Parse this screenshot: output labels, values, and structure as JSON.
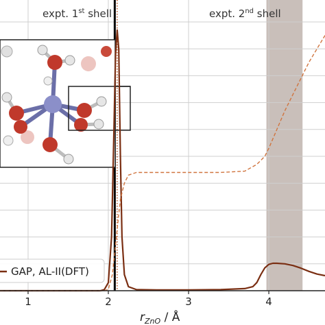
{
  "chart_data": {
    "type": "line",
    "xlabel": {
      "main": "r",
      "sub": "ZnO",
      "rest": " / Å"
    },
    "xlim": [
      0.65,
      4.7
    ],
    "ylim": [
      0,
      1
    ],
    "xticks": [
      1,
      2,
      3,
      4
    ],
    "xtick_labels": [
      "1",
      "2",
      "3",
      "4"
    ],
    "grid": true,
    "legend": {
      "position": "lower-left",
      "label": "GAP, AL-II(DFT)"
    },
    "annotations": [
      {
        "base": "expt. 1",
        "sup": "st",
        "rest": " shell"
      },
      {
        "base": "expt. 2",
        "sup": "nd",
        "rest": " shell"
      }
    ],
    "reference_lines": [
      {
        "x": 2.08,
        "style": "solid",
        "color": "#000000"
      },
      {
        "x": 2.11,
        "style": "dotted",
        "color": "#b5552a"
      }
    ],
    "shaded_band": {
      "x": [
        3.97,
        4.42
      ],
      "color": "#c9bfba"
    },
    "inset": {
      "description": "octahedral Zn–water cluster rendering"
    },
    "series": [
      {
        "name": "GAP, AL-II(DFT)",
        "role": "g(r)",
        "style": "solid",
        "color": "#7a2e12",
        "x": [
          0.65,
          1.9,
          1.95,
          2.0,
          2.04,
          2.07,
          2.09,
          2.11,
          2.13,
          2.15,
          2.17,
          2.2,
          2.25,
          2.35,
          2.6,
          3.0,
          3.4,
          3.7,
          3.8,
          3.85,
          3.9,
          3.95,
          4.0,
          4.05,
          4.1,
          4.2,
          4.3,
          4.4,
          4.5,
          4.6,
          4.7
        ],
        "y": [
          0.0,
          0.0,
          0.004,
          0.03,
          0.2,
          0.6,
          0.88,
          0.97,
          0.9,
          0.5,
          0.2,
          0.06,
          0.015,
          0.004,
          0.003,
          0.003,
          0.004,
          0.008,
          0.015,
          0.03,
          0.06,
          0.085,
          0.098,
          0.102,
          0.102,
          0.1,
          0.094,
          0.084,
          0.072,
          0.062,
          0.056
        ]
      },
      {
        "name": "",
        "role": "running coordination",
        "style": "dashed",
        "color": "#d0743e",
        "x": [
          0.65,
          1.95,
          2.0,
          2.05,
          2.1,
          2.15,
          2.2,
          2.25,
          2.35,
          2.6,
          3.0,
          3.4,
          3.7,
          3.85,
          3.95,
          4.0,
          4.1,
          4.2,
          4.3,
          4.4,
          4.5,
          4.6,
          4.7
        ],
        "y": [
          0.0,
          0.0,
          0.005,
          0.06,
          0.2,
          0.34,
          0.4,
          0.43,
          0.44,
          0.44,
          0.44,
          0.44,
          0.445,
          0.47,
          0.5,
          0.53,
          0.6,
          0.67,
          0.73,
          0.79,
          0.85,
          0.9,
          0.95
        ]
      }
    ]
  }
}
